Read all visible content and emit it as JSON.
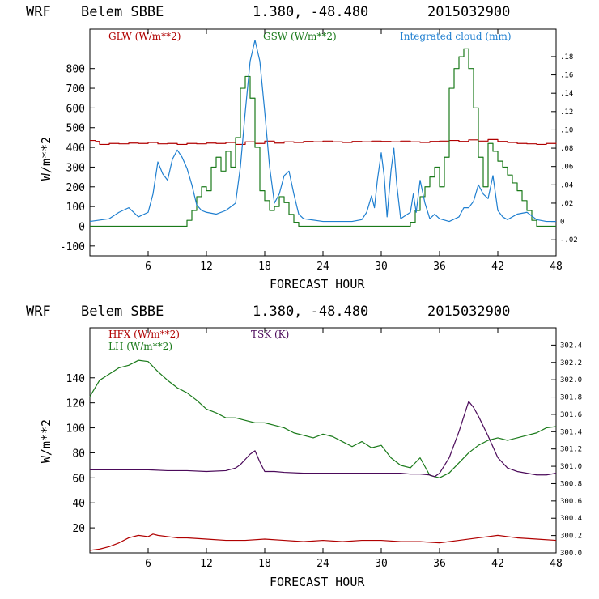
{
  "header": {
    "model": "WRF",
    "station": "Belem SBBE",
    "coords": "1.380, -48.480",
    "date": "2015032900"
  },
  "colors": {
    "red": "#b00000",
    "green": "#1a7a1a",
    "blue": "#1f7fd0",
    "purple": "#4b0a5a"
  },
  "chart_data": [
    {
      "type": "line",
      "xlabel": "FORECAST HOUR",
      "ylabel": "W/m**2",
      "xlim": [
        0,
        48
      ],
      "ylim": [
        -150,
        1000
      ],
      "xticks": [
        6,
        12,
        18,
        24,
        30,
        36,
        42,
        48
      ],
      "yticks": [
        -100,
        0,
        100,
        200,
        300,
        400,
        500,
        600,
        700,
        800
      ],
      "y2label": "Integrated cloud (mm)",
      "y2lim": [
        -0.0375,
        0.21
      ],
      "y2ticks": [
        -0.02,
        0,
        0.02,
        0.04,
        0.06,
        0.08,
        0.1,
        0.12,
        0.14,
        0.16,
        0.18
      ],
      "y2ticklabels": [
        "-.02",
        "0",
        ".02",
        ".04",
        ".06",
        ".08",
        ".10",
        ".12",
        ".14",
        ".16",
        ".18"
      ],
      "series": [
        {
          "name": "GLW (W/m**2)",
          "color": "red",
          "axis": "left",
          "step": true,
          "x": [
            0,
            0.6,
            1,
            2,
            3,
            4,
            5,
            6,
            7,
            8,
            9,
            10,
            11,
            12,
            13,
            14,
            15,
            16,
            17,
            18,
            19,
            20,
            21,
            22,
            23,
            24,
            25,
            26,
            27,
            28,
            29,
            30,
            31,
            32,
            33,
            34,
            35,
            36,
            37,
            38,
            39,
            40,
            41,
            42,
            43,
            44,
            45,
            46,
            47,
            48
          ],
          "y": [
            435,
            430,
            415,
            420,
            418,
            422,
            420,
            425,
            418,
            420,
            415,
            420,
            418,
            422,
            420,
            425,
            415,
            428,
            420,
            432,
            422,
            428,
            425,
            430,
            428,
            432,
            428,
            425,
            430,
            428,
            432,
            430,
            428,
            432,
            428,
            425,
            430,
            432,
            435,
            430,
            438,
            432,
            440,
            430,
            425,
            420,
            418,
            415,
            420,
            418
          ]
        },
        {
          "name": "GSW (W/m**2)",
          "color": "green",
          "axis": "left",
          "step": true,
          "x": [
            0,
            9.5,
            10,
            10.5,
            11,
            11.5,
            12,
            12.5,
            13,
            13.5,
            14,
            14.5,
            15,
            15.5,
            16,
            16.5,
            17,
            17.5,
            18,
            18.5,
            19,
            19.5,
            20,
            20.5,
            21,
            21.5,
            22,
            26,
            27,
            28,
            29,
            30,
            31,
            32,
            33,
            33.5,
            34,
            34.5,
            35,
            35.5,
            36,
            36.5,
            37,
            37.5,
            38,
            38.5,
            39,
            39.5,
            40,
            40.5,
            41,
            41.5,
            42,
            42.5,
            43,
            43.5,
            44,
            44.5,
            45,
            45.5,
            46,
            48
          ],
          "y": [
            0,
            0,
            30,
            80,
            150,
            200,
            180,
            300,
            350,
            280,
            380,
            300,
            450,
            700,
            760,
            650,
            400,
            180,
            130,
            80,
            100,
            150,
            120,
            60,
            20,
            0,
            0,
            0,
            0,
            0,
            0,
            0,
            0,
            0,
            20,
            80,
            150,
            200,
            250,
            300,
            200,
            350,
            700,
            800,
            860,
            900,
            800,
            600,
            350,
            200,
            420,
            380,
            330,
            300,
            260,
            220,
            180,
            130,
            80,
            30,
            0,
            0
          ]
        },
        {
          "name": "Integrated cloud (mm)",
          "color": "blue",
          "axis": "right",
          "step": false,
          "x": [
            0,
            2,
            3,
            4,
            5,
            6,
            6.5,
            7,
            7.5,
            8,
            8.5,
            9,
            9.5,
            10,
            10.5,
            11,
            11.5,
            12,
            13,
            14,
            15,
            15.5,
            16,
            16.5,
            17,
            17.5,
            18,
            18.5,
            19,
            19.5,
            20,
            20.5,
            21,
            21.5,
            22,
            24,
            25,
            26,
            27,
            28,
            28.5,
            29,
            29.3,
            29.6,
            30,
            30.3,
            30.6,
            31,
            31.3,
            31.6,
            32,
            33,
            33.3,
            33.6,
            34,
            34.5,
            35,
            35.5,
            36,
            37,
            38,
            38.5,
            39,
            39.5,
            40,
            40.5,
            41,
            41.5,
            42,
            42.5,
            43,
            44,
            45,
            46,
            47,
            48
          ],
          "y": [
            0,
            0.003,
            0.01,
            0.015,
            0.005,
            0.01,
            0.03,
            0.065,
            0.052,
            0.045,
            0.068,
            0.078,
            0.07,
            0.058,
            0.04,
            0.018,
            0.012,
            0.01,
            0.008,
            0.012,
            0.02,
            0.06,
            0.12,
            0.175,
            0.198,
            0.175,
            0.12,
            0.06,
            0.02,
            0.03,
            0.05,
            0.055,
            0.03,
            0.008,
            0.003,
            0,
            0,
            0,
            0,
            0.002,
            0.01,
            0.028,
            0.015,
            0.045,
            0.075,
            0.05,
            0.005,
            0.055,
            0.08,
            0.04,
            0.003,
            0.01,
            0.03,
            0.01,
            0.045,
            0.02,
            0.003,
            0.008,
            0.003,
            0,
            0.005,
            0.015,
            0.015,
            0.022,
            0.04,
            0.03,
            0.025,
            0.05,
            0.012,
            0.005,
            0.002,
            0.008,
            0.01,
            0.002,
            0,
            0
          ]
        }
      ]
    },
    {
      "type": "line",
      "xlabel": "FORECAST HOUR",
      "ylabel": "W/m**2",
      "xlim": [
        0,
        48
      ],
      "ylim": [
        0,
        180
      ],
      "xticks": [
        6,
        12,
        18,
        24,
        30,
        36,
        42,
        48
      ],
      "yticks": [
        20,
        40,
        60,
        80,
        100,
        120,
        140
      ],
      "y2label": "TSK (K)",
      "y2lim": [
        300.0,
        302.6
      ],
      "y2ticks": [
        300.0,
        300.2,
        300.4,
        300.6,
        300.8,
        301.0,
        301.2,
        301.4,
        301.6,
        301.8,
        302.0,
        302.2,
        302.4
      ],
      "y2ticklabels": [
        "300.0",
        "300.2",
        "300.4",
        "300.6",
        "300.8",
        "301.0",
        "301.2",
        "301.4",
        "301.6",
        "301.8",
        "302.0",
        "302.2",
        "302.4"
      ],
      "series": [
        {
          "name": "HFX (W/m**2)",
          "color": "red",
          "axis": "left",
          "step": false,
          "x": [
            0,
            1,
            2,
            3,
            4,
            5,
            6,
            6.5,
            7,
            8,
            9,
            10,
            12,
            14,
            16,
            18,
            20,
            22,
            24,
            26,
            28,
            30,
            32,
            34,
            36,
            38,
            40,
            41,
            42,
            43,
            44,
            46,
            48
          ],
          "y": [
            2,
            3,
            5,
            8,
            12,
            14,
            13,
            15,
            14,
            13,
            12,
            12,
            11,
            10,
            10,
            11,
            10,
            9,
            10,
            9,
            10,
            10,
            9,
            9,
            8,
            10,
            12,
            13,
            14,
            13,
            12,
            11,
            10
          ]
        },
        {
          "name": "LH (W/m**2)",
          "color": "green",
          "axis": "left",
          "step": false,
          "x": [
            0,
            1,
            2,
            3,
            4,
            5,
            6,
            7,
            8,
            9,
            10,
            11,
            12,
            13,
            14,
            15,
            16,
            17,
            18,
            19,
            20,
            21,
            22,
            23,
            24,
            25,
            26,
            27,
            28,
            29,
            30,
            31,
            32,
            33,
            34,
            35,
            36,
            37,
            38,
            39,
            40,
            41,
            42,
            43,
            44,
            45,
            46,
            47,
            48
          ],
          "y": [
            125,
            138,
            143,
            148,
            150,
            154,
            153,
            145,
            138,
            132,
            128,
            122,
            115,
            112,
            108,
            108,
            106,
            104,
            104,
            102,
            100,
            96,
            94,
            92,
            95,
            93,
            89,
            85,
            89,
            84,
            86,
            76,
            70,
            68,
            76,
            62,
            60,
            64,
            72,
            80,
            86,
            90,
            92,
            90,
            92,
            94,
            96,
            100,
            101
          ]
        },
        {
          "name": "TSK (K)",
          "color": "purple",
          "axis": "right",
          "step": false,
          "x": [
            0,
            2,
            4,
            6,
            8,
            10,
            12,
            14,
            15,
            15.5,
            16,
            16.5,
            17,
            17.5,
            18,
            19,
            20,
            22,
            24,
            26,
            28,
            30,
            32,
            33,
            34,
            35,
            35.5,
            36,
            37,
            38,
            39,
            39.5,
            40,
            41,
            42,
            43,
            44,
            45,
            46,
            47,
            48
          ],
          "y": [
            300.96,
            300.96,
            300.96,
            300.96,
            300.95,
            300.95,
            300.94,
            300.95,
            300.98,
            301.02,
            301.08,
            301.14,
            301.18,
            301.05,
            300.94,
            300.94,
            300.93,
            300.92,
            300.92,
            300.92,
            300.92,
            300.92,
            300.92,
            300.91,
            300.91,
            300.9,
            300.88,
            300.92,
            301.1,
            301.4,
            301.75,
            301.68,
            301.58,
            301.35,
            301.1,
            300.98,
            300.94,
            300.92,
            300.9,
            300.9,
            300.92
          ]
        }
      ]
    }
  ],
  "charts_text": [
    {
      "legend": [
        "GLW (W/m**2)",
        "GSW (W/m**2)",
        "Integrated cloud (mm)"
      ]
    },
    {
      "legend": [
        "HFX (W/m**2)",
        "LH (W/m**2)",
        "TSK (K)"
      ]
    }
  ]
}
